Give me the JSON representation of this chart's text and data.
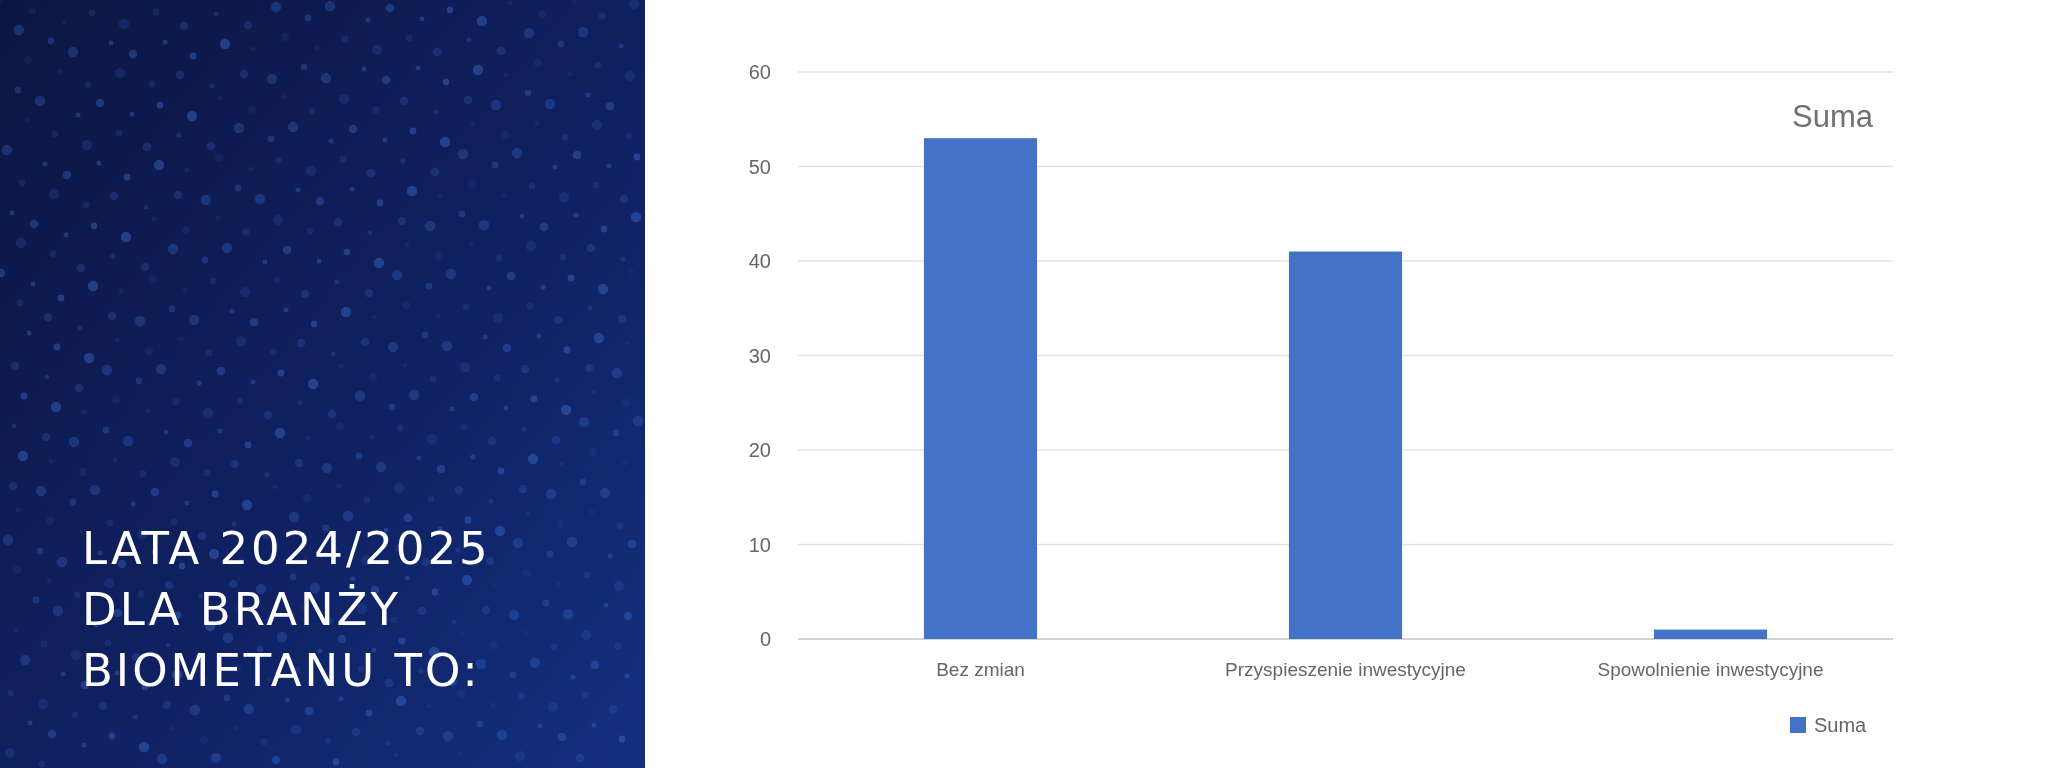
{
  "chart_data": {
    "type": "bar",
    "title": "LATA 2024/2025 DLA BRANŻY BIOMETANU TO:",
    "subtitle": "Suma",
    "categories": [
      "Bez zmian",
      "Przyspieszenie inwestycyjne",
      "Spowolnienie inwestycyjne"
    ],
    "series": [
      {
        "name": "Suma",
        "color": "#4472c4",
        "values": [
          53,
          41,
          1
        ]
      }
    ],
    "ylim": [
      0,
      60
    ],
    "yticks": [
      0,
      10,
      20,
      30,
      40,
      50,
      60
    ],
    "grid": "y",
    "legend": "bottom right"
  }
}
